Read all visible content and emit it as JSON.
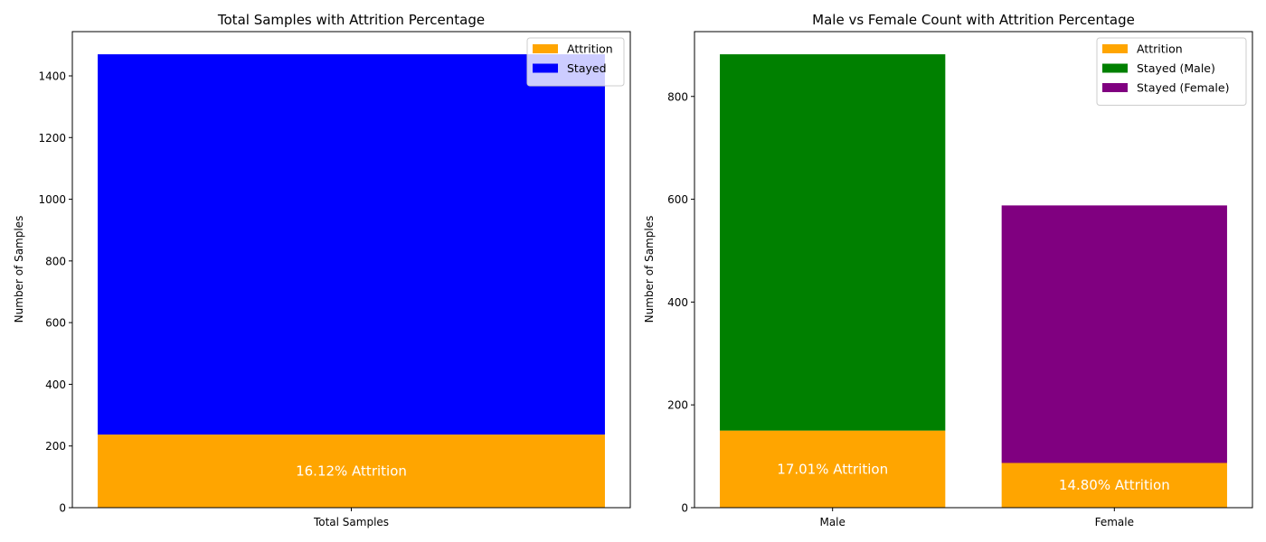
{
  "colors": {
    "attrition": "#ffa500",
    "stayed_total": "#0000ff",
    "stayed_male": "#008000",
    "stayed_female": "#800080",
    "inbar_label": "#ffffff"
  },
  "chart_data": [
    {
      "type": "bar",
      "stacked": true,
      "title": "Total Samples with Attrition Percentage",
      "xlabel": "",
      "ylabel": "Number of Samples",
      "categories": [
        "Total Samples"
      ],
      "ylim": [
        0,
        1543.5
      ],
      "yticks": [
        0,
        200,
        400,
        600,
        800,
        1000,
        1200,
        1400
      ],
      "legend_position": "top-right",
      "series": [
        {
          "name": "Attrition",
          "values": [
            237
          ],
          "color_key": "attrition"
        },
        {
          "name": "Stayed",
          "values": [
            1233
          ],
          "color_key": "stayed_total"
        }
      ],
      "bar_labels": [
        "16.12% Attrition"
      ]
    },
    {
      "type": "bar",
      "stacked": true,
      "title": "Male vs Female Count with Attrition Percentage",
      "xlabel": "",
      "ylabel": "Number of Samples",
      "categories": [
        "Male",
        "Female"
      ],
      "ylim": [
        0,
        926.1
      ],
      "yticks": [
        0,
        200,
        400,
        600,
        800
      ],
      "legend_position": "top-right",
      "legend": [
        {
          "name": "Attrition",
          "color_key": "attrition"
        },
        {
          "name": "Stayed (Male)",
          "color_key": "stayed_male"
        },
        {
          "name": "Stayed (Female)",
          "color_key": "stayed_female"
        }
      ],
      "stacks": [
        [
          {
            "name": "Attrition",
            "value": 150,
            "color_key": "attrition"
          },
          {
            "name": "Stayed (Male)",
            "value": 732,
            "color_key": "stayed_male"
          }
        ],
        [
          {
            "name": "Attrition",
            "value": 87,
            "color_key": "attrition"
          },
          {
            "name": "Stayed (Female)",
            "value": 501,
            "color_key": "stayed_female"
          }
        ]
      ],
      "bar_labels": [
        "17.01% Attrition",
        "14.80% Attrition"
      ]
    }
  ]
}
